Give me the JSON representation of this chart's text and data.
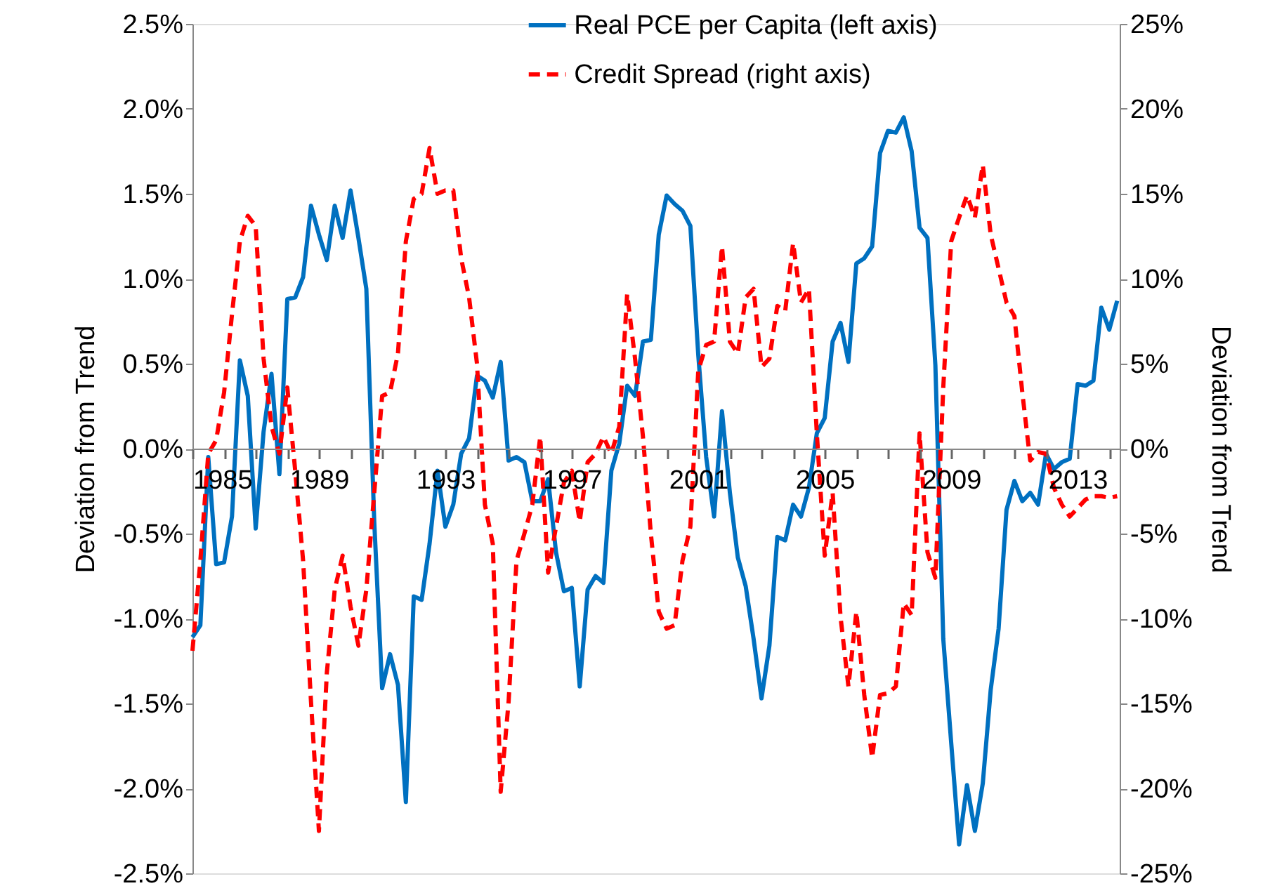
{
  "chart_data": {
    "type": "line",
    "xlabel": null,
    "ylabel": "Deviation from Trend",
    "y2label": "Deviation from Trend",
    "x": [
      1985,
      1985.25,
      1985.5,
      1985.75,
      1986,
      1986.25,
      1986.5,
      1986.75,
      1987,
      1987.25,
      1987.5,
      1987.75,
      1988,
      1988.25,
      1988.5,
      1988.75,
      1989,
      1989.25,
      1989.5,
      1989.75,
      1990,
      1990.25,
      1990.5,
      1990.75,
      1991,
      1991.25,
      1991.5,
      1991.75,
      1992,
      1992.25,
      1992.5,
      1992.75,
      1993,
      1993.25,
      1993.5,
      1993.75,
      1994,
      1994.25,
      1994.5,
      1994.75,
      1995,
      1995.25,
      1995.5,
      1995.75,
      1996,
      1996.25,
      1996.5,
      1996.75,
      1997,
      1997.25,
      1997.5,
      1997.75,
      1998,
      1998.25,
      1998.5,
      1998.75,
      1999,
      1999.25,
      1999.5,
      1999.75,
      2000,
      2000.25,
      2000.5,
      2000.75,
      2001,
      2001.25,
      2001.5,
      2001.75,
      2002,
      2002.25,
      2002.5,
      2002.75,
      2003,
      2003.25,
      2003.5,
      2003.75,
      2004,
      2004.25,
      2004.5,
      2004.75,
      2005,
      2005.25,
      2005.5,
      2005.75,
      2006,
      2006.25,
      2006.5,
      2006.75,
      2007,
      2007.25,
      2007.5,
      2007.75,
      2008,
      2008.25,
      2008.5,
      2008.75,
      2009,
      2009.25,
      2009.5,
      2009.75,
      2010,
      2010.25,
      2010.5,
      2010.75,
      2011,
      2011.25,
      2011.5,
      2011.75,
      2012,
      2012.25,
      2012.5,
      2012.75,
      2013,
      2013.25,
      2013.5,
      2013.75,
      2014,
      2014.25
    ],
    "series": [
      {
        "name": "Real PCE per Capita (left axis)",
        "color": "#0070c0",
        "line_style": "solid",
        "values": [
          -1.11,
          -1.04,
          -0.05,
          -0.68,
          -0.67,
          -0.4,
          0.52,
          0.31,
          -0.47,
          0.1,
          0.44,
          -0.15,
          0.88,
          0.89,
          1.01,
          1.43,
          1.26,
          1.11,
          1.43,
          1.24,
          1.52,
          1.24,
          0.94,
          -0.43,
          -1.41,
          -1.21,
          -1.39,
          -2.08,
          -0.87,
          -0.89,
          -0.56,
          -0.13,
          -0.46,
          -0.33,
          -0.03,
          0.06,
          0.43,
          0.4,
          0.3,
          0.51,
          -0.07,
          -0.05,
          -0.08,
          -0.31,
          -0.31,
          -0.18,
          -0.61,
          -0.84,
          -0.82,
          -1.4,
          -0.83,
          -0.75,
          -0.79,
          -0.13,
          0.03,
          0.37,
          0.31,
          0.63,
          0.64,
          1.26,
          1.49,
          1.44,
          1.4,
          1.31,
          0.55,
          -0.05,
          -0.4,
          0.22,
          -0.26,
          -0.64,
          -0.81,
          -1.12,
          -1.47,
          -1.16,
          -0.52,
          -0.54,
          -0.33,
          -0.4,
          -0.23,
          0.09,
          0.18,
          0.63,
          0.74,
          0.51,
          1.09,
          1.12,
          1.19,
          1.74,
          1.87,
          1.86,
          1.95,
          1.75,
          1.3,
          1.24,
          0.49,
          -1.12,
          -1.73,
          -2.33,
          -1.98,
          -2.25,
          -1.97,
          -1.42,
          -1.06,
          -0.36,
          -0.19,
          -0.31,
          -0.26,
          -0.33,
          -0.03,
          -0.12,
          -0.08,
          -0.06,
          0.38,
          0.37,
          0.4,
          0.83,
          0.7,
          0.87
        ]
      },
      {
        "name": "Credit Spread (right axis)",
        "color": "#ff0000",
        "line_style": "dashed",
        "axis": "y2",
        "values": [
          -11.9,
          -6.6,
          -0.3,
          0.5,
          3.3,
          7.9,
          12.2,
          13.7,
          13.1,
          5.3,
          1.3,
          -0.3,
          3.6,
          -1.3,
          -6.6,
          -14.9,
          -22.5,
          -13.2,
          -8.3,
          -6.3,
          -9.3,
          -11.6,
          -8.3,
          -2.6,
          3.1,
          3.3,
          5.6,
          12.2,
          14.7,
          15.0,
          17.7,
          15.0,
          15.2,
          15.2,
          11.2,
          8.9,
          5.0,
          -3.3,
          -5.6,
          -20.2,
          -14.9,
          -6.6,
          -5.0,
          -3.3,
          0.7,
          -7.3,
          -4.6,
          -2.0,
          -1.3,
          -4.3,
          -0.8,
          -0.3,
          0.7,
          -0.3,
          1.3,
          9.1,
          5.3,
          0.7,
          -5.0,
          -9.6,
          -10.6,
          -10.4,
          -6.6,
          -4.6,
          4.6,
          6.1,
          6.3,
          11.9,
          6.3,
          5.6,
          8.9,
          9.4,
          4.8,
          5.3,
          8.4,
          8.1,
          12.1,
          8.6,
          9.4,
          0.9,
          -6.3,
          -2.6,
          -9.9,
          -14.0,
          -9.6,
          -14.5,
          -18.2,
          -14.5,
          -14.4,
          -14.0,
          -9.1,
          -9.8,
          0.9,
          -6.1,
          -7.6,
          3.6,
          12.2,
          13.6,
          14.9,
          13.6,
          16.7,
          12.6,
          10.6,
          8.6,
          7.8,
          3.3,
          -0.7,
          -0.2,
          -0.3,
          -2.3,
          -3.3,
          -4.0,
          -3.5,
          -3.0,
          -2.8,
          -2.8,
          -2.9,
          -2.8
        ]
      }
    ],
    "xlim": [
      1985,
      2014.33
    ],
    "xticks": [
      1985,
      {
        "value": 1986,
        "label": null
      },
      {
        "value": 1987,
        "label": null
      },
      {
        "value": 1988,
        "label": null
      },
      1989,
      {
        "value": 1990,
        "label": null
      },
      {
        "value": 1991,
        "label": null
      },
      {
        "value": 1992,
        "label": null
      },
      1993,
      {
        "value": 1994,
        "label": null
      },
      {
        "value": 1995,
        "label": null
      },
      {
        "value": 1996,
        "label": null
      },
      1997,
      {
        "value": 1998,
        "label": null
      },
      {
        "value": 1999,
        "label": null
      },
      {
        "value": 2000,
        "label": null
      },
      2001,
      {
        "value": 2002,
        "label": null
      },
      {
        "value": 2003,
        "label": null
      },
      {
        "value": 2004,
        "label": null
      },
      2005,
      {
        "value": 2006,
        "label": null
      },
      {
        "value": 2007,
        "label": null
      },
      {
        "value": 2008,
        "label": null
      },
      2009,
      {
        "value": 2010,
        "label": null
      },
      {
        "value": 2011,
        "label": null
      },
      {
        "value": 2012,
        "label": null
      },
      2013,
      {
        "value": 2014,
        "label": null
      }
    ],
    "ylim": [
      -2.5,
      2.5
    ],
    "yticks": [
      {
        "value": -2.5,
        "label": "-2.5%"
      },
      {
        "value": -2.0,
        "label": "-2.0%"
      },
      {
        "value": -1.5,
        "label": "-1.5%"
      },
      {
        "value": -1.0,
        "label": "-1.0%"
      },
      {
        "value": -0.5,
        "label": "-0.5%"
      },
      {
        "value": 0,
        "label": "0.0%"
      },
      {
        "value": 0.5,
        "label": "0.5%"
      },
      {
        "value": 1.0,
        "label": "1.0%"
      },
      {
        "value": 1.5,
        "label": "1.5%"
      },
      {
        "value": 2.0,
        "label": "2.0%"
      },
      {
        "value": 2.5,
        "label": "2.5%"
      }
    ],
    "y2lim": [
      -25,
      25
    ],
    "y2ticks": [
      {
        "value": -25,
        "label": "-25%"
      },
      {
        "value": -20,
        "label": "-20%"
      },
      {
        "value": -15,
        "label": "-15%"
      },
      {
        "value": -10,
        "label": "-10%"
      },
      {
        "value": -5,
        "label": "-5%"
      },
      {
        "value": 0,
        "label": "0%"
      },
      {
        "value": 5,
        "label": "5%"
      },
      {
        "value": 10,
        "label": "10%"
      },
      {
        "value": 15,
        "label": "15%"
      },
      {
        "value": 20,
        "label": "20%"
      },
      {
        "value": 25,
        "label": "25%"
      }
    ],
    "grid": false,
    "legend": "top",
    "marker": "none"
  }
}
